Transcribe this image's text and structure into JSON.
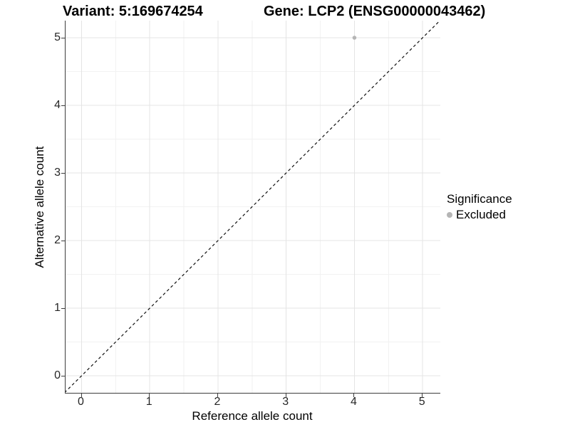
{
  "figure": {
    "variant_title": "Variant: 5:169674254",
    "gene_title": "Gene: LCP2 (ENSG00000043462)"
  },
  "chart_data": {
    "type": "scatter",
    "xlabel": "Reference allele count",
    "ylabel": "Alternative allele count",
    "xlim": [
      -0.25,
      5.25
    ],
    "ylim": [
      -0.25,
      5.25
    ],
    "x_ticks": [
      0,
      1,
      2,
      3,
      4,
      5
    ],
    "y_ticks": [
      0,
      1,
      2,
      3,
      4,
      5
    ],
    "x_minor": [
      0.5,
      1.5,
      2.5,
      3.5,
      4.5
    ],
    "y_minor": [
      0.5,
      1.5,
      2.5,
      3.5,
      4.5
    ],
    "grid": "major+minor",
    "identity_line": {
      "style": "dashed",
      "color": "#111111",
      "from": -0.25,
      "to": 5.25
    },
    "series": [
      {
        "name": "Excluded",
        "color": "#b5b5b5",
        "points": [
          {
            "x": 4,
            "y": 5
          }
        ]
      }
    ],
    "legend": {
      "title": "Significance",
      "position": "right",
      "items": [
        {
          "label": "Excluded",
          "color": "#b5b5b5"
        }
      ]
    },
    "colors": {
      "grid_major": "#e4e4e4",
      "grid_minor": "#f2f2f2",
      "axis_line": "#3d3d3d",
      "tick_text": "#262626"
    }
  }
}
